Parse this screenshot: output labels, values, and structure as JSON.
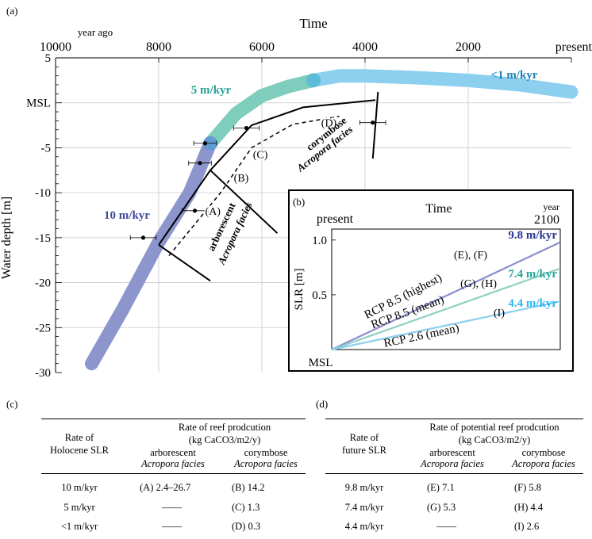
{
  "panel_labels": {
    "a": "(a)",
    "b": "(b)",
    "c": "(c)",
    "d": "(d)"
  },
  "chart_data": [
    {
      "type": "line",
      "panel": "(a)",
      "title": "Time",
      "xlabel": "Time",
      "ylabel": "Water depth [m]",
      "x_unit": "year ago",
      "x_ticks": [
        10000,
        8000,
        6000,
        4000,
        2000,
        "present"
      ],
      "x_range": [
        10000,
        0
      ],
      "x_direction": "reversed",
      "y_ticks": [
        5,
        "MSL",
        -5,
        -10,
        -15,
        -20,
        -25,
        -30
      ],
      "y_range": [
        -30,
        5
      ],
      "grid": true,
      "sea_level_band": {
        "points": [
          [
            9300,
            -29
          ],
          [
            8700,
            -23
          ],
          [
            8000,
            -15.5
          ],
          [
            7400,
            -10
          ],
          [
            7000,
            -4.5
          ],
          [
            6500,
            -1.2
          ],
          [
            6000,
            0.8
          ],
          [
            5500,
            1.8
          ],
          [
            5000,
            2.5
          ],
          [
            4500,
            3.0
          ],
          [
            4000,
            3.0
          ],
          [
            3000,
            2.8
          ],
          [
            2000,
            2.5
          ],
          [
            1000,
            2.0
          ],
          [
            0,
            1.2
          ]
        ],
        "segments": [
          {
            "label": "10 m/kyr",
            "from": 9300,
            "to": 7000,
            "color": "#8c96cc"
          },
          {
            "label": "5 m/kyr",
            "from": 7000,
            "to": 5000,
            "color": "#7fcdbd"
          },
          {
            "label": "<1 m/kyr",
            "from": 5000,
            "to": 0,
            "color": "#8ccfef"
          }
        ]
      },
      "reef_solid_outline": [
        [
          8000,
          -15.8
        ],
        [
          7000,
          -7.5
        ],
        [
          6200,
          -2.5
        ],
        [
          5200,
          -0.5
        ],
        [
          3800,
          0.3
        ]
      ],
      "reef_dashed_outline": [
        [
          7800,
          -17
        ],
        [
          6800,
          -10
        ],
        [
          6200,
          -5
        ],
        [
          5400,
          -2.4
        ],
        [
          4500,
          -1.5
        ]
      ],
      "front_lines": [
        [
          [
            8000,
            -15.8
          ],
          [
            7000,
            -19.8
          ]
        ],
        [
          [
            7000,
            -7.5
          ],
          [
            5700,
            -14.5
          ]
        ],
        [
          [
            3750,
            1.2
          ],
          [
            3850,
            -6.2
          ]
        ]
      ],
      "data_points": [
        {
          "x": 8300,
          "y": -15,
          "xerr": 250
        },
        {
          "x": 7300,
          "y": -12,
          "xerr": 250
        },
        {
          "x": 7200,
          "y": -6.7,
          "xerr": 220
        },
        {
          "x": 7100,
          "y": -4.5,
          "xerr": 220
        },
        {
          "x": 6300,
          "y": -2.8,
          "xerr": 250
        },
        {
          "x": 3850,
          "y": -2.2,
          "xerr": 250
        }
      ],
      "markers": [
        {
          "label": "(A)",
          "x": 6950,
          "y": -12
        },
        {
          "label": "(B)",
          "x": 6400,
          "y": -8.3
        },
        {
          "label": "(C)",
          "x": 6030,
          "y": -5.7
        },
        {
          "label": "(D)",
          "x": 4700,
          "y": -2.2
        }
      ],
      "rate_labels": [
        "10 m/kyr",
        "5 m/kyr",
        "<1 m/kyr"
      ],
      "annotations": {
        "corymbose": "corymbose",
        "corymbose_acropora": "Acropora facies",
        "arborescent": "arborescent",
        "arborescent_acropora": "Acropora facies"
      }
    },
    {
      "type": "line",
      "panel": "(b)",
      "title": "Time",
      "xlabel": "Time",
      "ylabel": "SLR [m]",
      "x_ticks": [
        "present",
        "2100"
      ],
      "x_unit": "year",
      "y_ticks": [
        "MSL",
        0.5,
        1.0
      ],
      "y_range": [
        0,
        1.1
      ],
      "series": [
        {
          "name": "RCP 8.5 (highest)",
          "values": [
            0,
            0.98
          ],
          "rate": "9.8 m/kyr",
          "markers": "(E), (F)",
          "color": "#8c8dcf"
        },
        {
          "name": "RCP 8.5 (mean)",
          "values": [
            0,
            0.74
          ],
          "rate": "7.4 m/kyr",
          "markers": "(G), (H)",
          "color": "#8fd0c2"
        },
        {
          "name": "RCP 2.6 (mean)",
          "values": [
            0,
            0.44
          ],
          "rate": "4.4 m/kyr",
          "markers": "(I)",
          "color": "#8ccfef"
        }
      ],
      "rate_colors": {
        "9.8 m/kyr": "#283593",
        "7.4 m/kyr": "#26a69a",
        "4.4 m/kyr": "#29b6f6"
      }
    }
  ],
  "tables": {
    "c": {
      "header_rate": [
        "Rate of",
        "Holocene SLR"
      ],
      "header_group": "Rate of reef prodcution",
      "header_unit": "(kg CaCO3/m2/y)",
      "col1": [
        "arborescent",
        "Acropora facies"
      ],
      "col2": [
        "corymbose",
        "Acropora facies"
      ],
      "rows": [
        {
          "rate": "10 m/kyr",
          "c1": "(A) 2.4–26.7",
          "c2": "(B) 14.2"
        },
        {
          "rate": "5 m/kyr",
          "c1": "——",
          "c2": "(C) 1.3"
        },
        {
          "rate": "<1 m/kyr",
          "c1": "——",
          "c2": "(D) 0.3"
        }
      ]
    },
    "d": {
      "header_rate": [
        "Rate of",
        "future SLR"
      ],
      "header_group": "Rate of potential reef prodcution",
      "header_unit": "(kg CaCO3/m2/y)",
      "col1": [
        "arborescent",
        "Acropora facies"
      ],
      "col2": [
        "corymbose",
        "Acropora facies"
      ],
      "rows": [
        {
          "rate": "9.8 m/kyr",
          "c1": "(E) 7.1",
          "c2": "(F) 5.8"
        },
        {
          "rate": "7.4 m/kyr",
          "c1": "(G) 5.3",
          "c2": "(H) 4.4"
        },
        {
          "rate": "4.4 m/kyr",
          "c1": "——",
          "c2": "(I) 2.6"
        }
      ]
    }
  }
}
